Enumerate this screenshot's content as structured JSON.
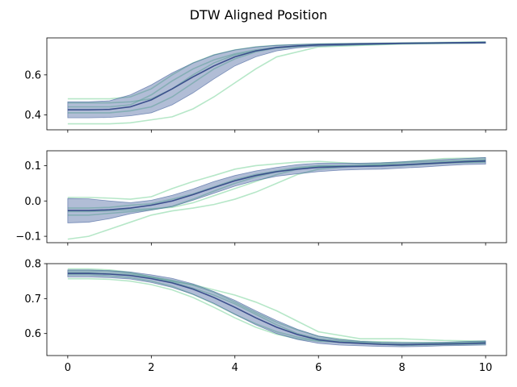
{
  "title": "DTW Aligned Position",
  "colors": {
    "mean_line": "#3b4f8c",
    "band_fill": "#3b5998",
    "trial_line": "#7ad39a",
    "axis": "#000000"
  },
  "chart_data": [
    {
      "type": "line",
      "panel": "top",
      "xlim": [
        -0.5,
        10.5
      ],
      "ylim": [
        0.325,
        0.785
      ],
      "xticks": [
        0,
        2,
        4,
        6,
        8,
        10
      ],
      "xtick_labels": [
        "",
        "",
        "",
        "",
        "",
        ""
      ],
      "yticks": [
        0.4,
        0.6
      ],
      "ytick_labels": [
        "0.4",
        "0.6"
      ],
      "mean": {
        "x": [
          0,
          0.5,
          1,
          1.5,
          2,
          2.5,
          3,
          3.5,
          4,
          4.5,
          5,
          5.5,
          6,
          7,
          8,
          9,
          10
        ],
        "y": [
          0.425,
          0.425,
          0.427,
          0.44,
          0.475,
          0.53,
          0.59,
          0.645,
          0.69,
          0.72,
          0.737,
          0.745,
          0.75,
          0.755,
          0.758,
          0.76,
          0.762
        ]
      },
      "band": {
        "x": [
          0,
          0.5,
          1,
          1.5,
          2,
          2.5,
          3,
          3.5,
          4,
          4.5,
          5,
          5.5,
          6,
          7,
          8,
          9,
          10
        ],
        "upper": [
          0.465,
          0.465,
          0.47,
          0.5,
          0.55,
          0.61,
          0.66,
          0.7,
          0.725,
          0.74,
          0.748,
          0.752,
          0.755,
          0.758,
          0.76,
          0.762,
          0.765
        ],
        "lower": [
          0.385,
          0.385,
          0.387,
          0.395,
          0.41,
          0.45,
          0.51,
          0.58,
          0.645,
          0.69,
          0.72,
          0.735,
          0.743,
          0.75,
          0.755,
          0.757,
          0.758
        ]
      },
      "trials": [
        {
          "x": [
            0,
            1,
            1.5,
            2,
            2.5,
            3,
            3.5,
            4,
            4.5,
            5,
            6,
            8,
            10
          ],
          "y": [
            0.355,
            0.355,
            0.36,
            0.375,
            0.39,
            0.43,
            0.49,
            0.56,
            0.63,
            0.69,
            0.74,
            0.755,
            0.76
          ]
        },
        {
          "x": [
            0,
            1,
            1.5,
            2,
            2.5,
            3,
            3.5,
            4,
            4.5,
            5,
            6,
            8,
            10
          ],
          "y": [
            0.48,
            0.48,
            0.49,
            0.53,
            0.6,
            0.66,
            0.7,
            0.725,
            0.74,
            0.748,
            0.755,
            0.76,
            0.765
          ]
        },
        {
          "x": [
            0,
            1,
            1.5,
            2,
            2.5,
            3,
            3.5,
            4,
            4.5,
            5,
            6,
            8,
            10
          ],
          "y": [
            0.44,
            0.44,
            0.45,
            0.5,
            0.57,
            0.63,
            0.675,
            0.705,
            0.725,
            0.738,
            0.75,
            0.757,
            0.762
          ]
        },
        {
          "x": [
            0,
            1,
            1.5,
            2,
            2.5,
            3,
            3.5,
            4,
            4.5,
            5,
            6,
            8,
            10
          ],
          "y": [
            0.41,
            0.41,
            0.42,
            0.44,
            0.49,
            0.56,
            0.63,
            0.68,
            0.715,
            0.735,
            0.748,
            0.755,
            0.76
          ]
        },
        {
          "x": [
            0,
            1,
            1.5,
            2,
            2.5,
            3,
            3.5,
            4,
            4.5,
            5,
            6,
            8,
            10
          ],
          "y": [
            0.46,
            0.46,
            0.465,
            0.48,
            0.53,
            0.6,
            0.66,
            0.7,
            0.72,
            0.735,
            0.75,
            0.758,
            0.763
          ]
        }
      ]
    },
    {
      "type": "line",
      "panel": "middle",
      "xlim": [
        -0.5,
        10.5
      ],
      "ylim": [
        -0.118,
        0.142
      ],
      "xticks": [
        0,
        2,
        4,
        6,
        8,
        10
      ],
      "xtick_labels": [
        "",
        "",
        "",
        "",
        "",
        ""
      ],
      "yticks": [
        -0.1,
        0.0,
        0.1
      ],
      "ytick_labels": [
        "−0.1",
        "0.0",
        "0.1"
      ],
      "mean": {
        "x": [
          0,
          0.5,
          1,
          1.5,
          2,
          2.5,
          3,
          3.5,
          4,
          4.5,
          5,
          5.5,
          6,
          6.5,
          7,
          7.5,
          8,
          8.5,
          9,
          9.5,
          10
        ],
        "y": [
          -0.027,
          -0.027,
          -0.025,
          -0.02,
          -0.012,
          0.0,
          0.018,
          0.038,
          0.057,
          0.072,
          0.083,
          0.09,
          0.095,
          0.097,
          0.098,
          0.099,
          0.102,
          0.105,
          0.108,
          0.111,
          0.113
        ]
      },
      "band": {
        "x": [
          0,
          0.5,
          1,
          1.5,
          2,
          2.5,
          3,
          3.5,
          4,
          4.5,
          5,
          5.5,
          6,
          6.5,
          7,
          7.5,
          8,
          8.5,
          9,
          9.5,
          10
        ],
        "upper": [
          0.007,
          0.006,
          0.0,
          -0.005,
          0.002,
          0.016,
          0.034,
          0.055,
          0.072,
          0.085,
          0.095,
          0.103,
          0.107,
          0.107,
          0.107,
          0.108,
          0.111,
          0.114,
          0.117,
          0.12,
          0.123
        ],
        "lower": [
          -0.062,
          -0.06,
          -0.05,
          -0.036,
          -0.026,
          -0.016,
          0.002,
          0.022,
          0.042,
          0.058,
          0.07,
          0.077,
          0.083,
          0.087,
          0.089,
          0.09,
          0.093,
          0.096,
          0.1,
          0.103,
          0.104
        ]
      },
      "trials": [
        {
          "x": [
            0,
            0.5,
            1,
            1.5,
            2,
            2.5,
            3,
            3.5,
            4,
            4.5,
            5,
            5.5,
            6,
            7,
            8,
            9,
            10
          ],
          "y": [
            -0.108,
            -0.1,
            -0.08,
            -0.06,
            -0.04,
            -0.028,
            -0.02,
            -0.01,
            0.005,
            0.025,
            0.05,
            0.075,
            0.09,
            0.1,
            0.108,
            0.113,
            0.117
          ]
        },
        {
          "x": [
            0,
            0.5,
            1,
            1.5,
            2,
            2.5,
            3,
            3.5,
            4,
            4.5,
            5,
            5.5,
            6,
            7,
            8,
            9,
            10
          ],
          "y": [
            0.01,
            0.01,
            0.008,
            0.005,
            0.012,
            0.035,
            0.055,
            0.072,
            0.09,
            0.1,
            0.105,
            0.11,
            0.112,
            0.105,
            0.11,
            0.12,
            0.122
          ]
        },
        {
          "x": [
            0,
            0.5,
            1,
            1.5,
            2,
            2.5,
            3,
            3.5,
            4,
            4.5,
            5,
            5.5,
            6,
            7,
            8,
            9,
            10
          ],
          "y": [
            -0.02,
            -0.02,
            -0.018,
            -0.012,
            -0.008,
            0.005,
            0.02,
            0.04,
            0.06,
            0.075,
            0.085,
            0.095,
            0.1,
            0.1,
            0.103,
            0.108,
            0.112
          ]
        },
        {
          "x": [
            0,
            0.5,
            1,
            1.5,
            2,
            2.5,
            3,
            3.5,
            4,
            4.5,
            5,
            5.5,
            6,
            7,
            8,
            9,
            10
          ],
          "y": [
            -0.03,
            -0.03,
            -0.028,
            -0.025,
            -0.022,
            -0.018,
            -0.005,
            0.015,
            0.035,
            0.055,
            0.075,
            0.09,
            0.098,
            0.1,
            0.102,
            0.11,
            0.115
          ]
        },
        {
          "x": [
            0,
            0.5,
            1,
            1.5,
            2,
            2.5,
            3,
            3.5,
            4,
            4.5,
            5,
            5.5,
            6,
            7,
            8,
            9,
            10
          ],
          "y": [
            -0.04,
            -0.04,
            -0.035,
            -0.03,
            -0.025,
            -0.015,
            0.005,
            0.028,
            0.05,
            0.068,
            0.082,
            0.092,
            0.097,
            0.098,
            0.1,
            0.107,
            0.11
          ]
        }
      ]
    },
    {
      "type": "line",
      "panel": "bottom",
      "xlim": [
        -0.5,
        10.5
      ],
      "ylim": [
        0.537,
        0.8
      ],
      "xticks": [
        0,
        2,
        4,
        6,
        8,
        10
      ],
      "xtick_labels": [
        "0",
        "2",
        "4",
        "6",
        "8",
        "10"
      ],
      "yticks": [
        0.6,
        0.7,
        0.8
      ],
      "ytick_labels": [
        "0.6",
        "0.7",
        "0.8"
      ],
      "mean": {
        "x": [
          0,
          0.5,
          1,
          1.5,
          2,
          2.5,
          3,
          3.5,
          4,
          4.5,
          5,
          5.5,
          6,
          6.5,
          7,
          7.5,
          8,
          8.5,
          9,
          9.5,
          10
        ],
        "y": [
          0.772,
          0.772,
          0.77,
          0.766,
          0.757,
          0.745,
          0.727,
          0.703,
          0.675,
          0.645,
          0.618,
          0.597,
          0.582,
          0.575,
          0.572,
          0.569,
          0.568,
          0.569,
          0.57,
          0.571,
          0.573
        ]
      },
      "band": {
        "x": [
          0,
          0.5,
          1,
          1.5,
          2,
          2.5,
          3,
          3.5,
          4,
          4.5,
          5,
          5.5,
          6,
          6.5,
          7,
          7.5,
          8,
          8.5,
          9,
          9.5,
          10
        ],
        "upper": [
          0.782,
          0.782,
          0.78,
          0.776,
          0.768,
          0.758,
          0.742,
          0.72,
          0.695,
          0.665,
          0.637,
          0.612,
          0.593,
          0.583,
          0.578,
          0.575,
          0.574,
          0.574,
          0.575,
          0.577,
          0.579
        ],
        "lower": [
          0.762,
          0.762,
          0.76,
          0.756,
          0.746,
          0.732,
          0.712,
          0.686,
          0.655,
          0.625,
          0.6,
          0.583,
          0.572,
          0.567,
          0.565,
          0.563,
          0.562,
          0.563,
          0.565,
          0.566,
          0.567
        ]
      },
      "trials": [
        {
          "x": [
            0,
            0.5,
            1,
            1.5,
            2,
            2.5,
            3,
            3.5,
            4,
            4.5,
            5,
            5.5,
            6,
            7,
            8,
            9,
            10
          ],
          "y": [
            0.785,
            0.785,
            0.782,
            0.775,
            0.762,
            0.75,
            0.74,
            0.725,
            0.71,
            0.69,
            0.665,
            0.635,
            0.605,
            0.585,
            0.585,
            0.58,
            0.578
          ]
        },
        {
          "x": [
            0,
            0.5,
            1,
            1.5,
            2,
            2.5,
            3,
            3.5,
            4,
            4.5,
            5,
            5.5,
            6,
            7,
            8,
            9,
            10
          ],
          "y": [
            0.757,
            0.757,
            0.755,
            0.75,
            0.74,
            0.725,
            0.703,
            0.675,
            0.645,
            0.618,
            0.598,
            0.585,
            0.578,
            0.572,
            0.568,
            0.57,
            0.572
          ]
        },
        {
          "x": [
            0,
            0.5,
            1,
            1.5,
            2,
            2.5,
            3,
            3.5,
            4,
            4.5,
            5,
            5.5,
            6,
            7,
            8,
            9,
            10
          ],
          "y": [
            0.775,
            0.775,
            0.772,
            0.768,
            0.76,
            0.748,
            0.73,
            0.71,
            0.685,
            0.655,
            0.625,
            0.6,
            0.585,
            0.575,
            0.57,
            0.572,
            0.575
          ]
        },
        {
          "x": [
            0,
            0.5,
            1,
            1.5,
            2,
            2.5,
            3,
            3.5,
            4,
            4.5,
            5,
            5.5,
            6,
            7,
            8,
            9,
            10
          ],
          "y": [
            0.768,
            0.768,
            0.765,
            0.76,
            0.75,
            0.735,
            0.712,
            0.685,
            0.655,
            0.628,
            0.605,
            0.59,
            0.58,
            0.574,
            0.566,
            0.568,
            0.57
          ]
        },
        {
          "x": [
            0,
            0.5,
            1,
            1.5,
            2,
            2.5,
            3,
            3.5,
            4,
            4.5,
            5,
            5.5,
            6,
            7,
            8,
            9,
            10
          ],
          "y": [
            0.78,
            0.78,
            0.778,
            0.772,
            0.762,
            0.752,
            0.738,
            0.718,
            0.69,
            0.66,
            0.632,
            0.61,
            0.592,
            0.578,
            0.575,
            0.574,
            0.576
          ]
        }
      ]
    }
  ]
}
